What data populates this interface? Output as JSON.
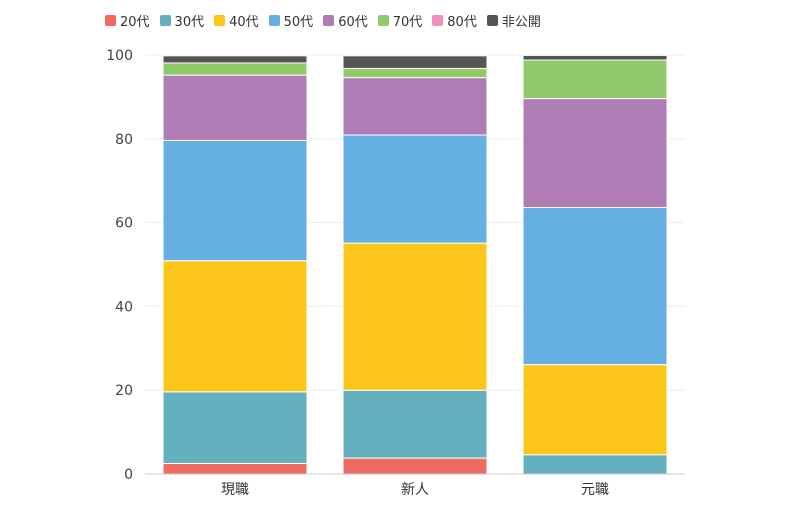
{
  "chart_data": {
    "type": "bar",
    "stacked": true,
    "categories": [
      "現職",
      "新人",
      "元職"
    ],
    "series": [
      {
        "name": "20代",
        "color": "#ee6b63",
        "values": [
          2.5,
          3.8,
          0
        ]
      },
      {
        "name": "30代",
        "color": "#65b0bf",
        "values": [
          17.1,
          16.2,
          4.6
        ]
      },
      {
        "name": "40代",
        "color": "#fcc519",
        "values": [
          31.3,
          35.1,
          21.5
        ]
      },
      {
        "name": "50代",
        "color": "#65b0e3",
        "values": [
          28.7,
          25.8,
          37.5
        ]
      },
      {
        "name": "60代",
        "color": "#b07cb5",
        "values": [
          15.6,
          13.7,
          26.0
        ]
      },
      {
        "name": "70代",
        "color": "#8fca6b",
        "values": [
          2.9,
          2.2,
          9.2
        ]
      },
      {
        "name": "80代",
        "color": "#ee91c1",
        "values": [
          0,
          0,
          0
        ]
      },
      {
        "name": "非公開",
        "color": "#555555",
        "values": [
          1.7,
          3.0,
          1.1
        ]
      }
    ],
    "ylim": [
      0,
      100
    ],
    "yticks": [
      0,
      20,
      40,
      60,
      80,
      100
    ],
    "grid": true,
    "legend": "top-left"
  }
}
